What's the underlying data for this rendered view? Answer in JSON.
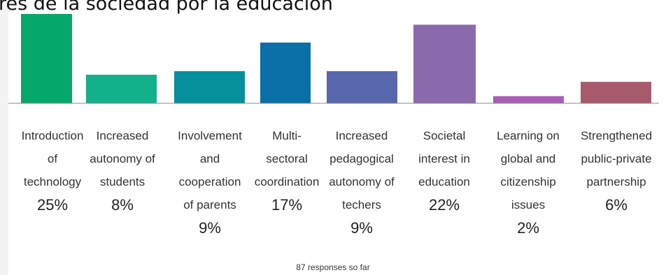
{
  "header": {
    "title": "rés de la sociedad por la educación"
  },
  "footer": {
    "responses": "87 responses so far"
  },
  "chart_data": {
    "type": "bar",
    "categories": [
      "Introduction of technology",
      "Increased autonomy of students",
      "Involvement and cooperation of parents",
      "Multi-sectoral coordination",
      "Increased pedagogical autonomy of techers",
      "Societal interest in education",
      "Learning on global and citizenship issues",
      "Strengthened public-private partnership"
    ],
    "category_lines": [
      "Introduction\nof\ntechnology",
      "Increased\nautonomy of\nstudents",
      "Involvement\nand\ncooperation\nof parents",
      "Multi-\nsectoral\ncoordination",
      "Increased\npedagogical\nautonomy of\ntechers",
      "Societal\ninterest in\neducation",
      "Learning on\nglobal and\ncitizenship\nissues",
      "Strengthened\npublic-private\npartnership"
    ],
    "values": [
      25,
      8,
      9,
      17,
      9,
      22,
      2,
      6
    ],
    "value_labels": [
      "25%",
      "8%",
      "9%",
      "17%",
      "9%",
      "22%",
      "2%",
      "6%"
    ],
    "colors": [
      "#05a86a",
      "#14b08c",
      "#05909b",
      "#0b6faa",
      "#5868ad",
      "#8a6aad",
      "#a95db5",
      "#a75a6c"
    ],
    "ylim": [
      0,
      25
    ]
  }
}
